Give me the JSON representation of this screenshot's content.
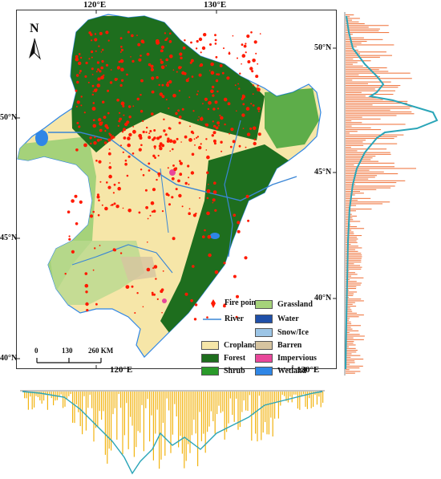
{
  "map": {
    "north_label": "N",
    "top_ticks": [
      "120°E",
      "130°E"
    ],
    "bottom_ticks": [
      "120°E",
      "130°E"
    ],
    "left_ticks": [
      "50°N",
      "45°N",
      "40°N"
    ],
    "right_ticks": [
      "50°N",
      "45°N",
      "40°N"
    ],
    "scalebar": {
      "ticks": [
        "0",
        "130",
        "260 KM"
      ]
    }
  },
  "legend": {
    "fire_point": "Fire point",
    "river": "River",
    "classes": [
      {
        "label": "Grassland",
        "color": "#a5d27a"
      },
      {
        "label": "Water",
        "color": "#1f4fa8"
      },
      {
        "label": "Snow/Ice",
        "color": "#9cc5e6"
      },
      {
        "label": "Cropland",
        "color": "#f6e6a8"
      },
      {
        "label": "Barren",
        "color": "#d6c4a0"
      },
      {
        "label": "Forest",
        "color": "#1e6e1e"
      },
      {
        "label": "Impervious",
        "color": "#e8479a"
      },
      {
        "label": "Shrub",
        "color": "#2a9a2a"
      },
      {
        "label": "Wetland",
        "color": "#2f86e6"
      }
    ]
  },
  "colors": {
    "fire": "#ff1a00",
    "river": "#3a86d6",
    "right_hist": "#f07a45",
    "bottom_hist": "#f2b410",
    "profile_line": "#2aa5b8"
  }
}
